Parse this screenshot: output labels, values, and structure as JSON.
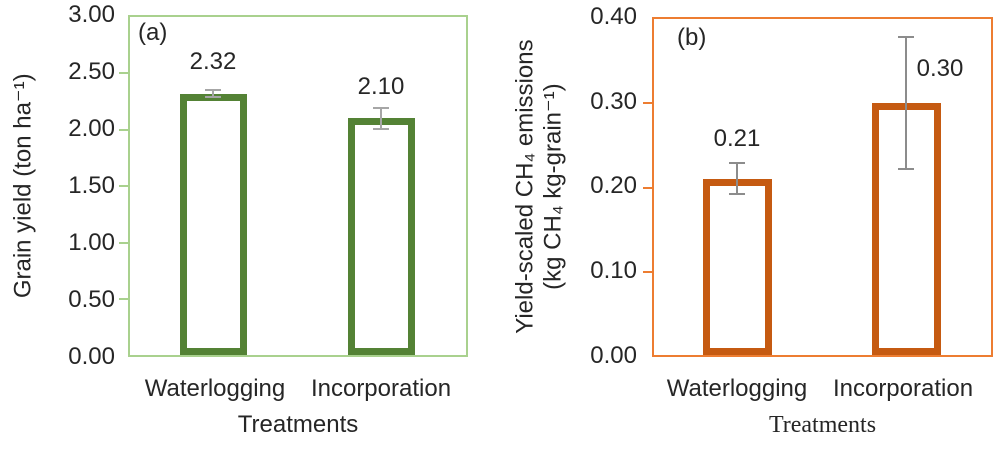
{
  "chart_data": [
    {
      "type": "bar",
      "panel_label": "(a)",
      "title": "",
      "categories": [
        "Waterlogging",
        "Incorporation"
      ],
      "values": [
        2.32,
        2.1
      ],
      "value_labels": [
        "2.32",
        "2.10"
      ],
      "errors": [
        0.04,
        0.1
      ],
      "xlabel": "Treatments",
      "ylabel": "Grain yield (ton ha⁻¹)",
      "ylim": [
        0,
        3.0
      ],
      "ytick_interval": 0.5,
      "yticks": [
        "3.00",
        "2.50",
        "2.00",
        "1.50",
        "1.00",
        "0.50",
        "0.00"
      ],
      "grid": false,
      "legend": false,
      "bar_fill": "#FFFFFF",
      "colors": {
        "bar_border": "#548235",
        "frame": "#A9D18E",
        "error_bar": "#A6A6A6",
        "text": "#262626"
      }
    },
    {
      "type": "bar",
      "panel_label": "(b)",
      "title": "",
      "categories": [
        "Waterlogging",
        "Incorporation"
      ],
      "values": [
        0.21,
        0.3
      ],
      "value_labels": [
        "0.21",
        "0.30"
      ],
      "errors": [
        0.02,
        0.08
      ],
      "xlabel": "Treatments",
      "ylabel": "Yield-scaled CH₄ emissions (kg CH₄ kg-grain⁻¹)",
      "ylabel_lines": [
        "Yield-scaled CH₄ emissions",
        "(kg CH₄ kg-grain⁻¹)"
      ],
      "ylim": [
        0,
        0.4
      ],
      "ytick_interval": 0.1,
      "yticks": [
        "0.40",
        "0.30",
        "0.20",
        "0.10",
        "0.00"
      ],
      "grid": false,
      "legend": false,
      "bar_fill": "#FFFFFF",
      "colors": {
        "bar_border": "#C55A11",
        "frame": "#ED7D31",
        "error_bar": "#8C8C8C",
        "text": "#262626"
      }
    }
  ]
}
